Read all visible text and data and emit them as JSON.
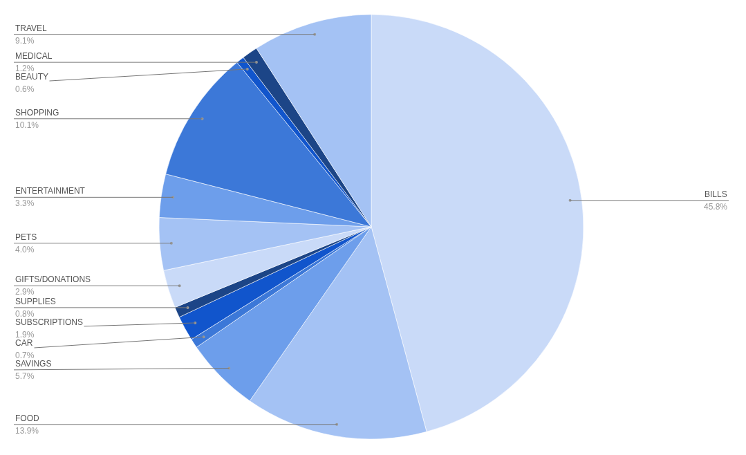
{
  "chart_data": {
    "type": "pie",
    "categories": [
      "BILLS",
      "FOOD",
      "SAVINGS",
      "CAR",
      "SUBSCRIPTIONS",
      "SUPPLIES",
      "GIFTS/DONATIONS",
      "PETS",
      "ENTERTAINMENT",
      "SHOPPING",
      "BEAUTY",
      "MEDICAL",
      "TRAVEL"
    ],
    "values": [
      45.8,
      13.9,
      5.7,
      0.7,
      1.9,
      0.8,
      2.9,
      4.0,
      3.3,
      10.1,
      0.6,
      1.2,
      9.1
    ],
    "value_labels": [
      "45.8%",
      "13.9%",
      "5.7%",
      "0.7%",
      "1.9%",
      "0.8%",
      "2.9%",
      "4.0%",
      "3.3%",
      "10.1%",
      "0.6%",
      "1.2%",
      "9.1%"
    ],
    "colors": [
      "#c9daf8",
      "#a4c2f4",
      "#6d9eeb",
      "#3c78d8",
      "#1155cc",
      "#1c4587",
      "#c9daf8",
      "#a4c2f4",
      "#6d9eeb",
      "#3c78d8",
      "#1155cc",
      "#1c4587",
      "#a4c2f4"
    ],
    "legend": false
  }
}
